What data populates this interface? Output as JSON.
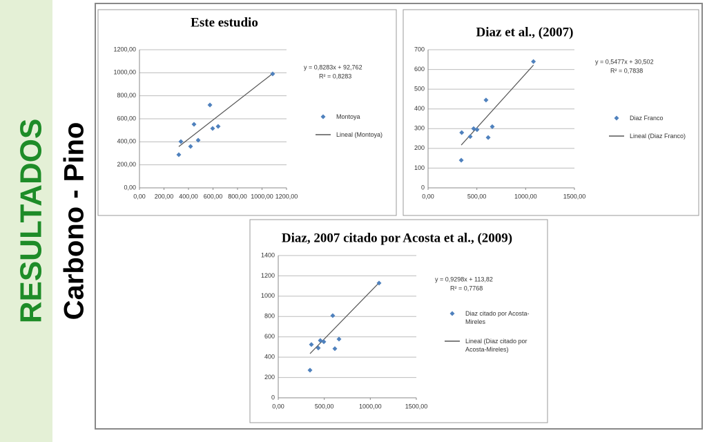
{
  "header": {
    "title": "RESULTADOS",
    "subtitle": "Carbono - Pino"
  },
  "chart_data": [
    {
      "type": "scatter",
      "title": "Este estudio",
      "series": [
        {
          "name": "Montoya",
          "color": "#4f81bd",
          "x": [
            338,
            321,
            417,
            445,
            479,
            575,
            597,
            642,
            1087
          ],
          "values": [
            402,
            288,
            360,
            552,
            414,
            720,
            516,
            534,
            990
          ]
        }
      ],
      "trendline": {
        "name": "Lineal (Montoya)",
        "slope": 0.8283,
        "intercept": 92.762,
        "equation": "y = 0,8283x + 92,762",
        "r2": "R² = 0,8283"
      },
      "xlim": [
        0,
        1200
      ],
      "xticks": [
        {
          "value": 0,
          "label": "0,00"
        },
        {
          "value": 200,
          "label": "200,00"
        },
        {
          "value": 400,
          "label": "400,00"
        },
        {
          "value": 600,
          "label": "600,00"
        },
        {
          "value": 800,
          "label": "800,00"
        },
        {
          "value": 1000,
          "label": "1000,00"
        },
        {
          "value": 1200,
          "label": "1200,00"
        }
      ],
      "ylim": [
        0,
        1200
      ],
      "yticks": [
        {
          "value": 0,
          "label": "0,00"
        },
        {
          "value": 200,
          "label": "200,00"
        },
        {
          "value": 400,
          "label": "400,00"
        },
        {
          "value": 600,
          "label": "600,00"
        },
        {
          "value": 800,
          "label": "800,00"
        },
        {
          "value": 1000,
          "label": "1000,00"
        },
        {
          "value": 1200,
          "label": "1200,00"
        }
      ],
      "grid": true
    },
    {
      "type": "scatter",
      "title": "Diaz et al., (2007)",
      "series": [
        {
          "name": "Diaz Franco",
          "color": "#4f81bd",
          "x": [
            340,
            345,
            432,
            467,
            502,
            594,
            616,
            658,
            1080
          ],
          "values": [
            140,
            280,
            260,
            300,
            295,
            445,
            255,
            310,
            640
          ]
        }
      ],
      "trendline": {
        "name": "Lineal (Diaz Franco)",
        "slope": 0.5477,
        "intercept": 30.502,
        "equation": "y = 0,5477x + 30,502",
        "r2": "R² = 0,7838"
      },
      "xlim": [
        0,
        1500
      ],
      "xticks": [
        {
          "value": 0,
          "label": "0,00"
        },
        {
          "value": 500,
          "label": "500,00"
        },
        {
          "value": 1000,
          "label": "1000,00"
        },
        {
          "value": 1500,
          "label": "1500,00"
        }
      ],
      "ylim": [
        0,
        700
      ],
      "yticks": [
        0,
        100,
        200,
        300,
        400,
        500,
        600,
        700
      ],
      "grid": true
    },
    {
      "type": "scatter",
      "title": "Diaz, 2007 citado por Acosta et al., (2009)",
      "series": [
        {
          "name": "Diaz citado por Acosta-Mireles",
          "color": "#4f81bd",
          "x": [
            345,
            360,
            435,
            457,
            495,
            592,
            615,
            660,
            1095
          ],
          "values": [
            272,
            524,
            490,
            564,
            551,
            809,
            483,
            578,
            1129
          ]
        }
      ],
      "trendline": {
        "name": "Lineal (Diaz citado por Acosta-Mireles)",
        "slope": 0.9298,
        "intercept": 113.82,
        "equation": "y = 0,9298x + 113,82",
        "r2": "R² = 0,7768"
      },
      "xlim": [
        0,
        1500
      ],
      "xticks": [
        {
          "value": 0,
          "label": "0,00"
        },
        {
          "value": 500,
          "label": "500,00"
        },
        {
          "value": 1000,
          "label": "1000,00"
        },
        {
          "value": 1500,
          "label": "1500,00"
        }
      ],
      "ylim": [
        0,
        1400
      ],
      "yticks": [
        0,
        200,
        400,
        600,
        800,
        1000,
        1200,
        1400
      ],
      "grid": true
    }
  ]
}
